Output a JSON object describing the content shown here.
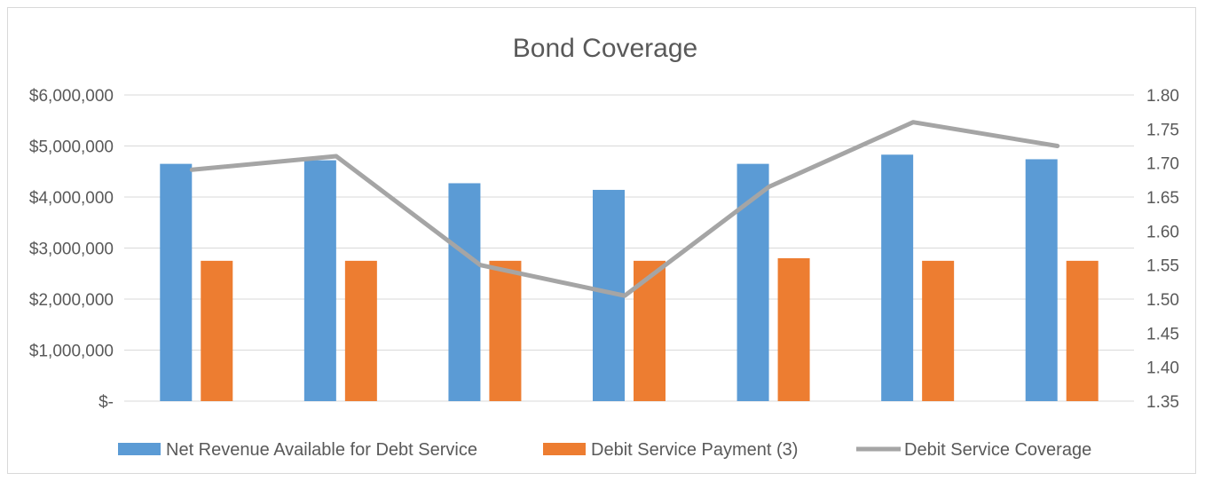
{
  "chart_data": {
    "type": "bar",
    "title": "Bond Coverage",
    "categories": [
      "",
      "",
      "",
      "",
      "",
      "",
      ""
    ],
    "series": [
      {
        "name": "Net Revenue Available for Debt Service",
        "kind": "bar",
        "axis": "left",
        "color": "#5b9bd5",
        "values": [
          4650000,
          4720000,
          4270000,
          4140000,
          4650000,
          4830000,
          4740000
        ]
      },
      {
        "name": "Debit Service Payment (3)",
        "kind": "bar",
        "axis": "left",
        "color": "#ed7d31",
        "values": [
          2750000,
          2750000,
          2750000,
          2750000,
          2800000,
          2750000,
          2750000
        ]
      },
      {
        "name": "Debit Service Coverage",
        "kind": "line",
        "axis": "right",
        "color": "#a5a5a5",
        "values": [
          1.69,
          1.71,
          1.55,
          1.505,
          1.665,
          1.76,
          1.725
        ]
      }
    ],
    "y_left": {
      "range": [
        0,
        6000000
      ],
      "ticks": [
        0,
        1000000,
        2000000,
        3000000,
        4000000,
        5000000,
        6000000
      ],
      "tick_labels": [
        "$-",
        "$1,000,000",
        "$2,000,000",
        "$3,000,000",
        "$4,000,000",
        "$5,000,000",
        "$6,000,000"
      ]
    },
    "y_right": {
      "range": [
        1.35,
        1.8
      ],
      "ticks": [
        1.35,
        1.4,
        1.45,
        1.5,
        1.55,
        1.6,
        1.65,
        1.7,
        1.75,
        1.8
      ],
      "tick_labels": [
        "1.35",
        "1.40",
        "1.45",
        "1.50",
        "1.55",
        "1.60",
        "1.65",
        "1.70",
        "1.75",
        "1.80"
      ]
    },
    "grid": true,
    "legend_position": "bottom"
  }
}
